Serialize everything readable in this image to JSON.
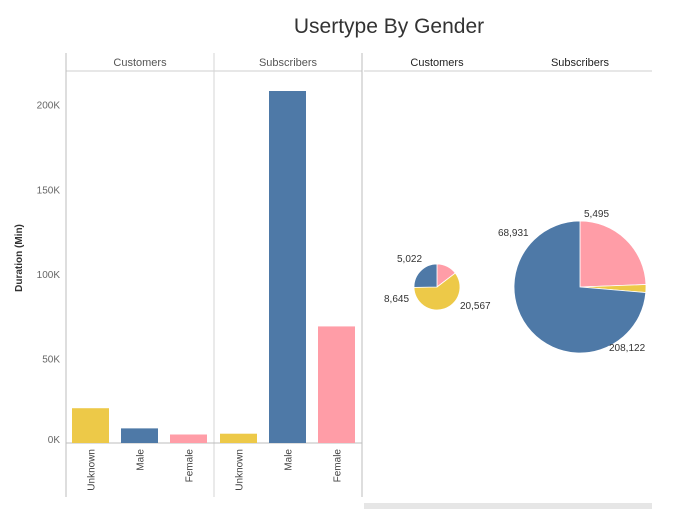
{
  "title": "Usertype By Gender",
  "colors": {
    "Unknown": "#EDC948",
    "Male": "#4E79A7",
    "Female": "#FF9DA7"
  },
  "chart_data": [
    {
      "type": "bar",
      "ylabel": "Duration (Min)",
      "ylim": [
        0,
        225000
      ],
      "yticks": [
        {
          "value": 0,
          "label": "0K"
        },
        {
          "value": 50000,
          "label": "50K"
        },
        {
          "value": 100000,
          "label": "100K"
        },
        {
          "value": 150000,
          "label": "150K"
        },
        {
          "value": 200000,
          "label": "200K"
        }
      ],
      "categories": [
        "Unknown",
        "Male",
        "Female"
      ],
      "panels": [
        {
          "name": "Customers",
          "values": [
            20567,
            8645,
            5022
          ]
        },
        {
          "name": "Subscribers",
          "values": [
            5495,
            208122,
            68931
          ]
        }
      ]
    },
    {
      "type": "pie",
      "panels": [
        {
          "name": "Customers",
          "slices": [
            {
              "label": "Unknown",
              "value": 20567,
              "text": "20,567"
            },
            {
              "label": "Male",
              "value": 8645,
              "text": "8,645"
            },
            {
              "label": "Female",
              "value": 5022,
              "text": "5,022"
            }
          ]
        },
        {
          "name": "Subscribers",
          "slices": [
            {
              "label": "Unknown",
              "value": 5495,
              "text": "5,495"
            },
            {
              "label": "Male",
              "value": 208122,
              "text": "208,122"
            },
            {
              "label": "Female",
              "value": 68931,
              "text": "68,931"
            }
          ]
        }
      ]
    }
  ]
}
